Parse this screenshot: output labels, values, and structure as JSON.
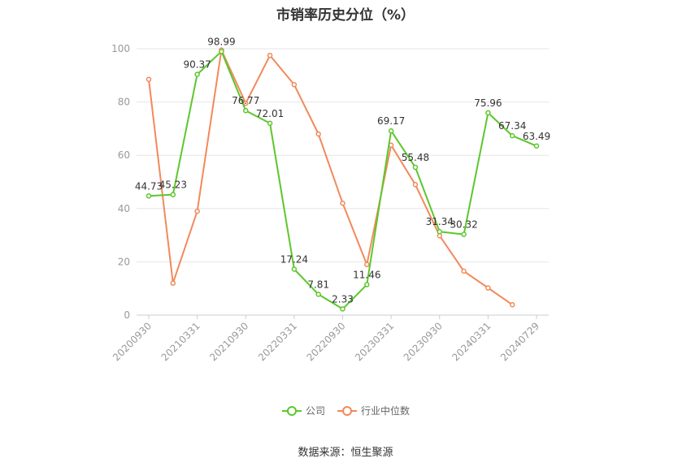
{
  "chart_data": {
    "type": "line",
    "title": "市销率历史分位（%）",
    "source": "数据来源：恒生聚源",
    "ylim": [
      0,
      100
    ],
    "yticks": [
      0,
      20,
      40,
      60,
      80,
      100
    ],
    "x_tick_labels": [
      "20200930",
      "20210331",
      "20210930",
      "20220331",
      "20220930",
      "20230331",
      "20230930",
      "20240331",
      "20240729"
    ],
    "grid": true,
    "legend_position": "bottom",
    "series": [
      {
        "name": "公司",
        "color": "#5cc72c",
        "show_labels": true,
        "values": [
          44.73,
          45.23,
          90.37,
          98.99,
          76.77,
          72.01,
          17.24,
          7.81,
          2.33,
          11.46,
          69.17,
          55.48,
          31.34,
          30.32,
          75.96,
          67.34,
          63.49
        ]
      },
      {
        "name": "行业中位数",
        "color": "#f2895b",
        "show_labels": false,
        "values": [
          88.5,
          12.0,
          39.0,
          99.5,
          79.5,
          97.5,
          86.5,
          68.0,
          42.0,
          19.0,
          63.8,
          49.0,
          29.8,
          16.5,
          10.2,
          3.9,
          null
        ]
      }
    ]
  }
}
